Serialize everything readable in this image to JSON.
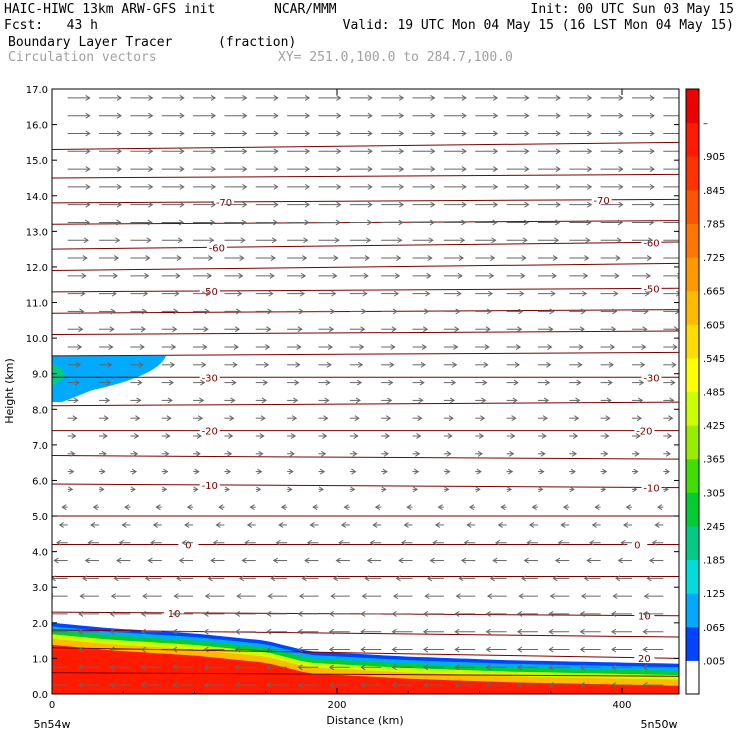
{
  "header": {
    "model": "HAIC-HIWC 13km ARW-GFS init",
    "org": "NCAR/MMM",
    "init": "Init: 00 UTC Sun 03 May 15",
    "fcst_label": "Fcst:",
    "fcst_value": "43 h",
    "valid": "Valid: 19 UTC Mon 04 May 15 (16 LST Mon 04 May 15)",
    "field": "Boundary Layer Tracer",
    "field_units": "(fraction)",
    "vectors": "Circulation vectors",
    "xy": "XY= 251.0,100.0 to 284.7,100.0"
  },
  "chart_data": {
    "type": "heatmap",
    "xlabel": "Distance (km)",
    "ylabel": "Height (km)",
    "xlim": [
      0,
      440
    ],
    "ylim": [
      0,
      17
    ],
    "x_ticks": [
      0,
      200,
      400
    ],
    "y_ticks": [
      "0.0",
      "1.0",
      "2.0",
      "3.0",
      "4.0",
      "5.0",
      "6.0",
      "7.0",
      "8.0",
      "9.0",
      "10.0",
      "11.0",
      "12.0",
      "13.0",
      "14.0",
      "15.0",
      "16.0",
      "17.0"
    ],
    "endpoints": {
      "left": "5n54w",
      "right": "5n50w"
    },
    "colorbar": {
      "labels": [
        ".005",
        ".065",
        ".125",
        ".185",
        ".245",
        ".305",
        ".365",
        ".425",
        ".485",
        ".545",
        ".605",
        ".665",
        ".725",
        ".785",
        ".845",
        ".905",
        "–"
      ],
      "colors": [
        "#ffffff",
        "#0044ff",
        "#00aaff",
        "#00dddd",
        "#00cc88",
        "#00cc33",
        "#44dd00",
        "#99ee00",
        "#ccff00",
        "#ffff00",
        "#ffdd00",
        "#ffbb00",
        "#ff9900",
        "#ff7700",
        "#ff5500",
        "#ff3300",
        "#ff1a00",
        "#ee0000"
      ]
    },
    "temperature_contours": {
      "levels": [
        -80,
        -75,
        -70,
        -65,
        -60,
        -55,
        -50,
        -45,
        -40,
        -35,
        -30,
        -25,
        -20,
        -15,
        -10,
        -5,
        0,
        5,
        10,
        15,
        20,
        25
      ],
      "heights_left": [
        15.3,
        14.5,
        13.8,
        13.2,
        12.5,
        11.9,
        11.3,
        10.7,
        10.1,
        9.5,
        8.9,
        8.1,
        7.4,
        6.7,
        5.9,
        5.0,
        4.2,
        3.3,
        2.3,
        1.8,
        1.3,
        0.6
      ],
      "heights_right": [
        15.5,
        14.6,
        13.9,
        13.3,
        12.7,
        12.1,
        11.4,
        10.8,
        10.2,
        9.6,
        8.9,
        8.2,
        7.4,
        6.6,
        5.8,
        5.0,
        4.2,
        3.3,
        2.2,
        1.6,
        1.0,
        0.5
      ],
      "labels": [
        {
          "level": -70,
          "text": "-70",
          "xs": [
            120,
            385
          ]
        },
        {
          "level": -60,
          "text": "-60",
          "xs": [
            115,
            420
          ]
        },
        {
          "level": -50,
          "text": "-50",
          "xs": [
            110,
            420
          ]
        },
        {
          "level": -30,
          "text": "-30",
          "xs": [
            110,
            420
          ]
        },
        {
          "level": -20,
          "text": "-20",
          "xs": [
            110,
            415
          ]
        },
        {
          "level": -10,
          "text": "-10",
          "xs": [
            110,
            420
          ]
        },
        {
          "level": 0,
          "text": "0",
          "xs": [
            95,
            410
          ]
        },
        {
          "level": 10,
          "text": "10",
          "xs": [
            85,
            415
          ]
        },
        {
          "level": 20,
          "text": "20",
          "xs": [
            415
          ]
        }
      ]
    },
    "tracer": {
      "boundary_layer_top_km": [
        [
          0,
          2.0
        ],
        [
          40,
          1.85
        ],
        [
          100,
          1.7
        ],
        [
          150,
          1.5
        ],
        [
          180,
          1.2
        ],
        [
          250,
          1.05
        ],
        [
          320,
          0.95
        ],
        [
          380,
          0.9
        ],
        [
          440,
          0.85
        ]
      ],
      "bands": [
        {
          "value": 0.005,
          "offset_km": 0.0
        },
        {
          "value": 0.065,
          "offset_km": 0.1
        },
        {
          "value": 0.245,
          "offset_km": 0.2
        },
        {
          "value": 0.425,
          "offset_km": 0.32
        },
        {
          "value": 0.605,
          "offset_km": 0.45
        },
        {
          "value": 0.905,
          "offset_km": 0.62
        }
      ],
      "upper_plume": {
        "x_km": [
          0,
          80
        ],
        "y_km": [
          8.2,
          9.5
        ],
        "value": 0.065
      }
    },
    "vectors": {
      "upper_flow": "eastward",
      "lower_flow": "westward",
      "reversal_height_km": 5.5
    }
  }
}
